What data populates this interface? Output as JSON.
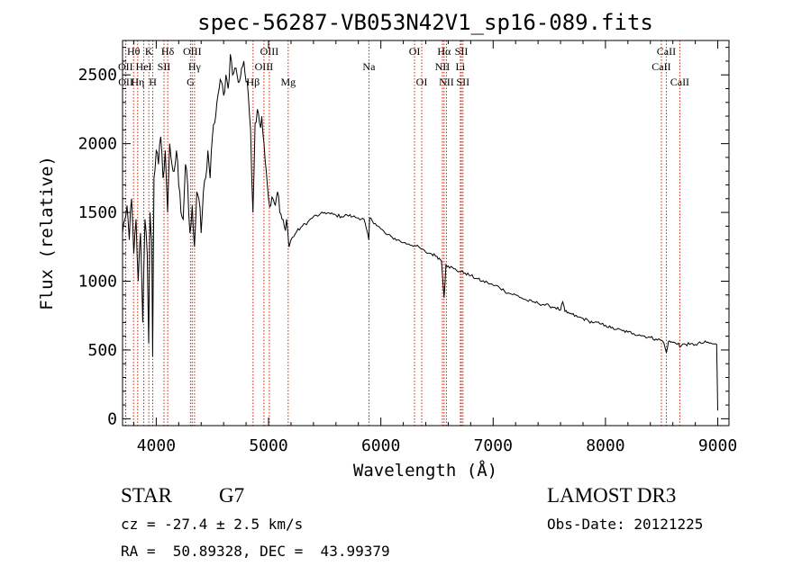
{
  "chart_data": {
    "type": "line",
    "title": "spec-56287-VB053N42V1_sp16-089.fits",
    "xlabel": "Wavelength (Å)",
    "ylabel": "Flux (relative)",
    "xlim": [
      3700,
      9100
    ],
    "ylim": [
      -50,
      2750
    ],
    "grid": false,
    "x_ticks": [
      4000,
      5000,
      6000,
      7000,
      8000,
      9000
    ],
    "y_ticks": [
      0,
      500,
      1000,
      1500,
      2000,
      2500
    ],
    "series": [
      {
        "x": [
          3700,
          3720,
          3740,
          3760,
          3780,
          3800,
          3820,
          3840,
          3860,
          3880,
          3900,
          3920,
          3933,
          3945,
          3960,
          3968,
          3980,
          4000,
          4020,
          4040,
          4060,
          4080,
          4101,
          4120,
          4140,
          4160,
          4180,
          4200,
          4220,
          4240,
          4260,
          4280,
          4300,
          4320,
          4340,
          4361,
          4380,
          4400,
          4420,
          4440,
          4460,
          4480,
          4500,
          4520,
          4540,
          4560,
          4580,
          4600,
          4620,
          4640,
          4660,
          4680,
          4700,
          4720,
          4740,
          4760,
          4780,
          4800,
          4820,
          4840,
          4861,
          4880,
          4900,
          4920,
          4940,
          4960,
          4980,
          5000,
          5020,
          5040,
          5060,
          5080,
          5100,
          5120,
          5140,
          5160,
          5172,
          5183,
          5200,
          5250,
          5300,
          5350,
          5400,
          5450,
          5500,
          5550,
          5600,
          5650,
          5700,
          5750,
          5800,
          5850,
          5893,
          5900,
          5950,
          6000,
          6050,
          6100,
          6150,
          6200,
          6250,
          6300,
          6350,
          6400,
          6450,
          6500,
          6540,
          6563,
          6580,
          6600,
          6650,
          6700,
          6750,
          6800,
          6850,
          6900,
          6950,
          7000,
          7050,
          7100,
          7150,
          7200,
          7250,
          7300,
          7350,
          7400,
          7450,
          7500,
          7550,
          7600,
          7620,
          7640,
          7660,
          7700,
          7750,
          7800,
          7850,
          7900,
          7950,
          8000,
          8050,
          8100,
          8150,
          8200,
          8250,
          8300,
          8350,
          8400,
          8450,
          8500,
          8520,
          8542,
          8560,
          8600,
          8650,
          8662,
          8700,
          8750,
          8800,
          8850,
          8900,
          8950,
          8990,
          9000
        ],
        "y": [
          1350,
          1450,
          1550,
          1300,
          1600,
          1200,
          1450,
          1000,
          1350,
          700,
          1450,
          1200,
          550,
          1500,
          1300,
          450,
          1750,
          1950,
          1850,
          2050,
          1750,
          1950,
          1500,
          2000,
          1850,
          1800,
          1950,
          1700,
          1500,
          1450,
          1850,
          1700,
          1350,
          1550,
          1250,
          1650,
          1600,
          1350,
          1650,
          1750,
          1950,
          1750,
          2050,
          2150,
          2300,
          2400,
          2450,
          2350,
          2500,
          2400,
          2650,
          2500,
          2550,
          2500,
          2450,
          2550,
          2600,
          2450,
          2350,
          2100,
          1500,
          2150,
          2250,
          2150,
          2200,
          2000,
          1800,
          1600,
          1550,
          1600,
          1550,
          1650,
          1500,
          1450,
          1400,
          1450,
          1350,
          1250,
          1300,
          1360,
          1400,
          1430,
          1470,
          1480,
          1500,
          1490,
          1480,
          1470,
          1480,
          1470,
          1460,
          1450,
          1300,
          1460,
          1420,
          1380,
          1340,
          1320,
          1300,
          1280,
          1270,
          1260,
          1240,
          1210,
          1200,
          1180,
          1150,
          880,
          1120,
          1110,
          1090,
          1070,
          1060,
          1040,
          1020,
          1000,
          990,
          970,
          960,
          930,
          910,
          900,
          880,
          860,
          850,
          840,
          830,
          820,
          810,
          790,
          850,
          780,
          770,
          760,
          740,
          730,
          710,
          700,
          690,
          680,
          660,
          650,
          640,
          630,
          620,
          610,
          600,
          590,
          580,
          570,
          550,
          480,
          560,
          555,
          550,
          520,
          545,
          540,
          540,
          550,
          555,
          545,
          540,
          60
        ]
      }
    ],
    "line_markers": [
      {
        "label": "Hθ",
        "wavelength": 3798,
        "row": 1
      },
      {
        "label": "OII",
        "wavelength": 3727,
        "row": 2
      },
      {
        "label": "OII",
        "wavelength": 3729,
        "row": 3
      },
      {
        "label": "Hη",
        "wavelength": 3835,
        "row": 3
      },
      {
        "label": "HeI",
        "wavelength": 3889,
        "row": 2
      },
      {
        "label": "K",
        "wavelength": 3934,
        "row": 1
      },
      {
        "label": "H",
        "wavelength": 3969,
        "row": 3
      },
      {
        "label": "SII",
        "wavelength": 4069,
        "row": 2
      },
      {
        "label": "Hδ",
        "wavelength": 4102,
        "row": 1
      },
      {
        "label": "OIII",
        "wavelength": 4320,
        "row": 1
      },
      {
        "label": "Hγ",
        "wavelength": 4341,
        "row": 2
      },
      {
        "label": "G",
        "wavelength": 4305,
        "row": 3
      },
      {
        "label": "Hβ",
        "wavelength": 4862,
        "row": 3
      },
      {
        "label": "OIII",
        "wavelength": 4959,
        "row": 2
      },
      {
        "label": "OIII",
        "wavelength": 5007,
        "row": 1
      },
      {
        "label": "Mg",
        "wavelength": 5175,
        "row": 3
      },
      {
        "label": "Na",
        "wavelength": 5894,
        "row": 2
      },
      {
        "label": "OI",
        "wavelength": 6300,
        "row": 1
      },
      {
        "label": "OI",
        "wavelength": 6364,
        "row": 3
      },
      {
        "label": "Hα",
        "wavelength": 6563,
        "row": 1
      },
      {
        "label": "NII",
        "wavelength": 6548,
        "row": 2
      },
      {
        "label": "NII",
        "wavelength": 6584,
        "row": 3
      },
      {
        "label": "SII",
        "wavelength": 6717,
        "row": 1
      },
      {
        "label": "Li",
        "wavelength": 6708,
        "row": 2
      },
      {
        "label": "SII",
        "wavelength": 6731,
        "row": 3
      },
      {
        "label": "CaII",
        "wavelength": 8498,
        "row": 2
      },
      {
        "label": "CaII",
        "wavelength": 8542,
        "row": 1
      },
      {
        "label": "CaII",
        "wavelength": 8662,
        "row": 3
      }
    ],
    "marker_color": "#cc2200"
  },
  "info": {
    "class": "STAR",
    "subclass": "G7",
    "survey": "LAMOST DR3",
    "cz": "cz = -27.4 ± 2.5 km/s",
    "obs_date": "Obs-Date: 20121225",
    "coords": "RA =  50.89328, DEC =  43.99379"
  }
}
